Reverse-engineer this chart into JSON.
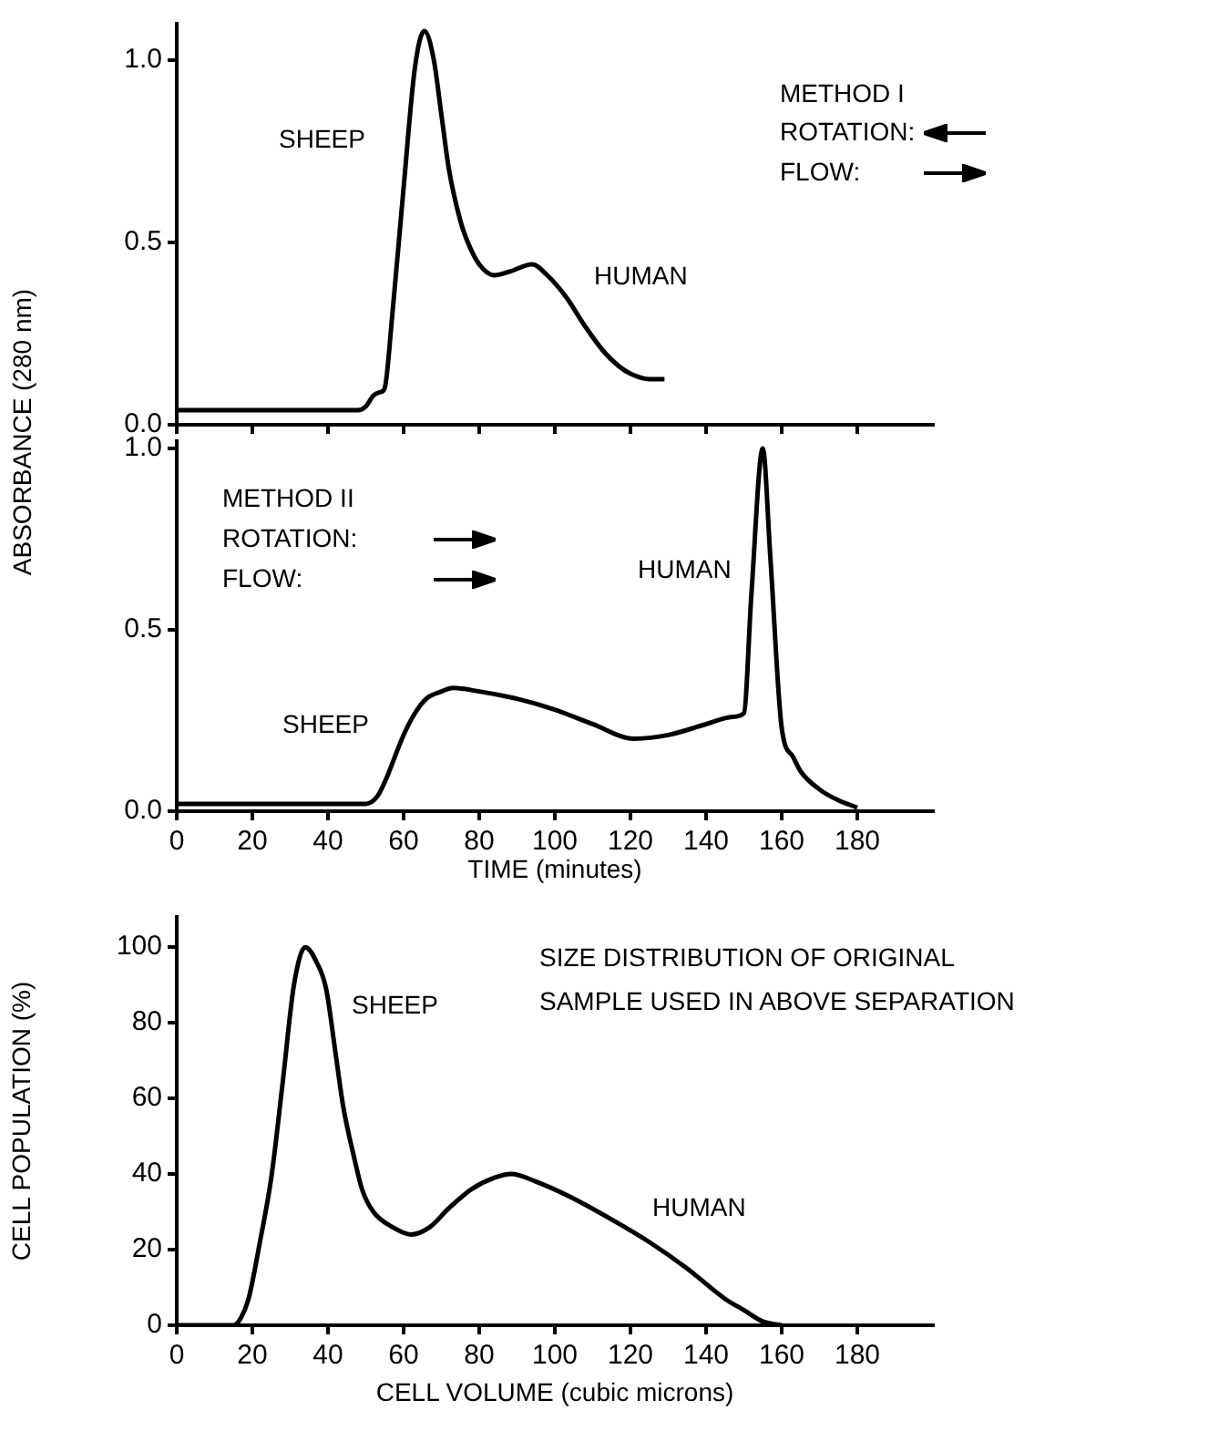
{
  "chart_data": [
    {
      "type": "line",
      "ylabel": "ABSORBANCE (280 nm)",
      "xlim": [
        0,
        200
      ],
      "xticks": [
        0,
        20,
        40,
        60,
        80,
        100,
        120,
        140,
        160,
        180
      ],
      "ylim": [
        0,
        1.1
      ],
      "yticks": [
        {
          "value": 0,
          "label": "0.0"
        },
        {
          "value": 0.5,
          "label": "0.5"
        },
        {
          "value": 1,
          "label": "1.0"
        }
      ],
      "tick_labels": "y",
      "marker": "none",
      "series": [
        {
          "color": "#000000",
          "x": [
            0,
            10,
            20,
            30,
            40,
            48,
            50,
            52,
            54,
            55,
            57,
            60,
            63,
            65.5,
            68,
            70,
            72,
            75,
            77,
            80,
            84,
            88,
            94,
            98,
            103,
            108,
            113,
            117,
            120,
            125,
            129
          ],
          "values": [
            0.04,
            0.04,
            0.04,
            0.04,
            0.04,
            0.04,
            0.05,
            0.08,
            0.09,
            0.1,
            0.3,
            0.65,
            0.98,
            1.08,
            1.0,
            0.85,
            0.7,
            0.56,
            0.5,
            0.44,
            0.41,
            0.42,
            0.44,
            0.41,
            0.35,
            0.27,
            0.2,
            0.16,
            0.14,
            0.125,
            0.125
          ]
        }
      ],
      "annotations": [
        "SHEEP",
        "HUMAN",
        "METHOD I",
        "ROTATION:",
        "FLOW:"
      ]
    },
    {
      "type": "line",
      "xlabel": "TIME (minutes)",
      "xlim": [
        0,
        200
      ],
      "xticks": [
        0,
        20,
        40,
        60,
        80,
        100,
        120,
        140,
        160,
        180
      ],
      "ylim": [
        0,
        1.02
      ],
      "yticks": [
        {
          "value": 0,
          "label": "0.0"
        },
        {
          "value": 0.5,
          "label": "0.5"
        },
        {
          "value": 1,
          "label": "1.0"
        }
      ],
      "marker": "none",
      "series": [
        {
          "color": "#000000",
          "x": [
            0,
            20,
            40,
            50,
            53,
            55,
            60,
            63,
            66,
            70,
            73,
            80,
            90,
            100,
            110,
            121,
            130,
            140,
            147,
            150,
            152,
            155,
            157,
            160,
            163,
            165,
            170,
            175,
            180
          ],
          "values": [
            0.02,
            0.02,
            0.02,
            0.02,
            0.04,
            0.08,
            0.21,
            0.27,
            0.31,
            0.33,
            0.34,
            0.33,
            0.31,
            0.28,
            0.24,
            0.2,
            0.21,
            0.24,
            0.26,
            0.27,
            0.6,
            1.0,
            0.7,
            0.23,
            0.15,
            0.11,
            0.06,
            0.03,
            0.01
          ]
        }
      ],
      "annotations": [
        "SHEEP",
        "HUMAN",
        "METHOD II",
        "ROTATION:",
        "FLOW:"
      ]
    },
    {
      "type": "line",
      "xlabel": "CELL VOLUME (cubic microns)",
      "ylabel": "CELL POPULATION (%)",
      "xlim": [
        0,
        200
      ],
      "xticks": [
        0,
        20,
        40,
        60,
        80,
        100,
        120,
        140,
        160,
        180
      ],
      "ylim": [
        0,
        108
      ],
      "yticks": [
        0,
        20,
        40,
        60,
        80,
        100
      ],
      "marker": "none",
      "series": [
        {
          "color": "#000000",
          "x": [
            0,
            10,
            15,
            17,
            19,
            22,
            25,
            28,
            31,
            34,
            37,
            39.5,
            42,
            44,
            47,
            49,
            52,
            57,
            62,
            67,
            72,
            78,
            84,
            88.5,
            95,
            104,
            115,
            125,
            135,
            145,
            150,
            155,
            160
          ],
          "values": [
            0,
            0,
            0,
            2,
            7,
            22,
            39,
            64,
            90,
            100,
            96,
            89,
            72,
            58,
            44,
            36,
            30,
            26,
            24,
            26,
            31,
            36,
            39,
            40,
            38,
            34,
            28,
            22,
            15,
            7,
            4,
            1,
            0
          ]
        }
      ],
      "annotations": [
        "SHEEP",
        "HUMAN",
        "SIZE DISTRIBUTION OF ORIGINAL",
        "SAMPLE USED IN ABOVE SEPARATION"
      ]
    }
  ]
}
